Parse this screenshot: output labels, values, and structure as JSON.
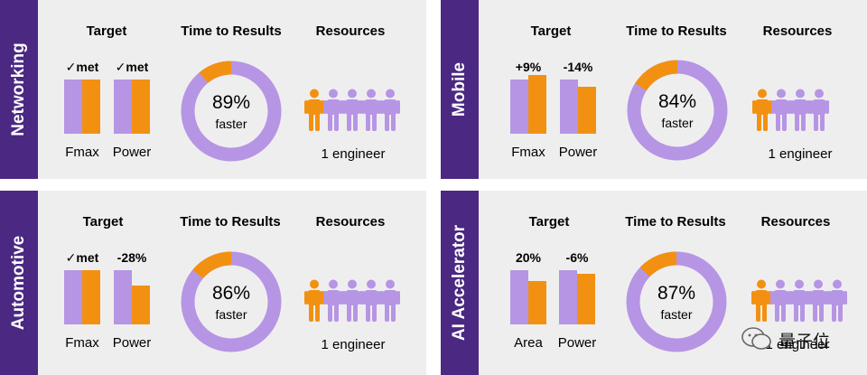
{
  "colors": {
    "purple_dark": "#4b2882",
    "purple_light": "#b695e4",
    "orange": "#f29111",
    "panel_bg": "#efeeef"
  },
  "headers": {
    "target": "Target",
    "time": "Time to Results",
    "resources": "Resources"
  },
  "chart_data": [
    {
      "type": "bar+donut",
      "title": "Networking",
      "target": [
        {
          "category": "Fmax",
          "label": "✓met",
          "values": {
            "baseline": 100,
            "result": 100
          }
        },
        {
          "category": "Power",
          "label": "✓met",
          "values": {
            "baseline": 100,
            "result": 100
          }
        }
      ],
      "time_to_results": {
        "percent": 89,
        "text": "89%",
        "subtext": "faster"
      },
      "resources": {
        "engineers_used": 1,
        "icons_total": 5,
        "text": "1 engineer"
      }
    },
    {
      "type": "bar+donut",
      "title": "Mobile",
      "target": [
        {
          "category": "Fmax",
          "label": "+9%",
          "values": {
            "baseline": 100,
            "result": 109
          }
        },
        {
          "category": "Power",
          "label": "-14%",
          "values": {
            "baseline": 100,
            "result": 86
          }
        }
      ],
      "time_to_results": {
        "percent": 84,
        "text": "84%",
        "subtext": "faster"
      },
      "resources": {
        "engineers_used": 1,
        "icons_total": 4,
        "text": "1 engineer"
      }
    },
    {
      "type": "bar+donut",
      "title": "Automotive",
      "target": [
        {
          "category": "Fmax",
          "label": "✓met",
          "values": {
            "baseline": 100,
            "result": 100
          }
        },
        {
          "category": "Power",
          "label": "-28%",
          "values": {
            "baseline": 100,
            "result": 72
          }
        }
      ],
      "time_to_results": {
        "percent": 86,
        "text": "86%",
        "subtext": "faster"
      },
      "resources": {
        "engineers_used": 1,
        "icons_total": 5,
        "text": "1 engineer"
      }
    },
    {
      "type": "bar+donut",
      "title": "AI Accelerator",
      "target": [
        {
          "category": "Area",
          "label": "20%",
          "values": {
            "baseline": 100,
            "result": 80
          }
        },
        {
          "category": "Power",
          "label": "-6%",
          "values": {
            "baseline": 100,
            "result": 94
          }
        }
      ],
      "time_to_results": {
        "percent": 87,
        "text": "87%",
        "subtext": "faster"
      },
      "resources": {
        "engineers_used": 1,
        "icons_total": 5,
        "text": "1 engineer"
      }
    }
  ],
  "watermark": {
    "text": "量子位",
    "icon": "wechat-icon"
  }
}
